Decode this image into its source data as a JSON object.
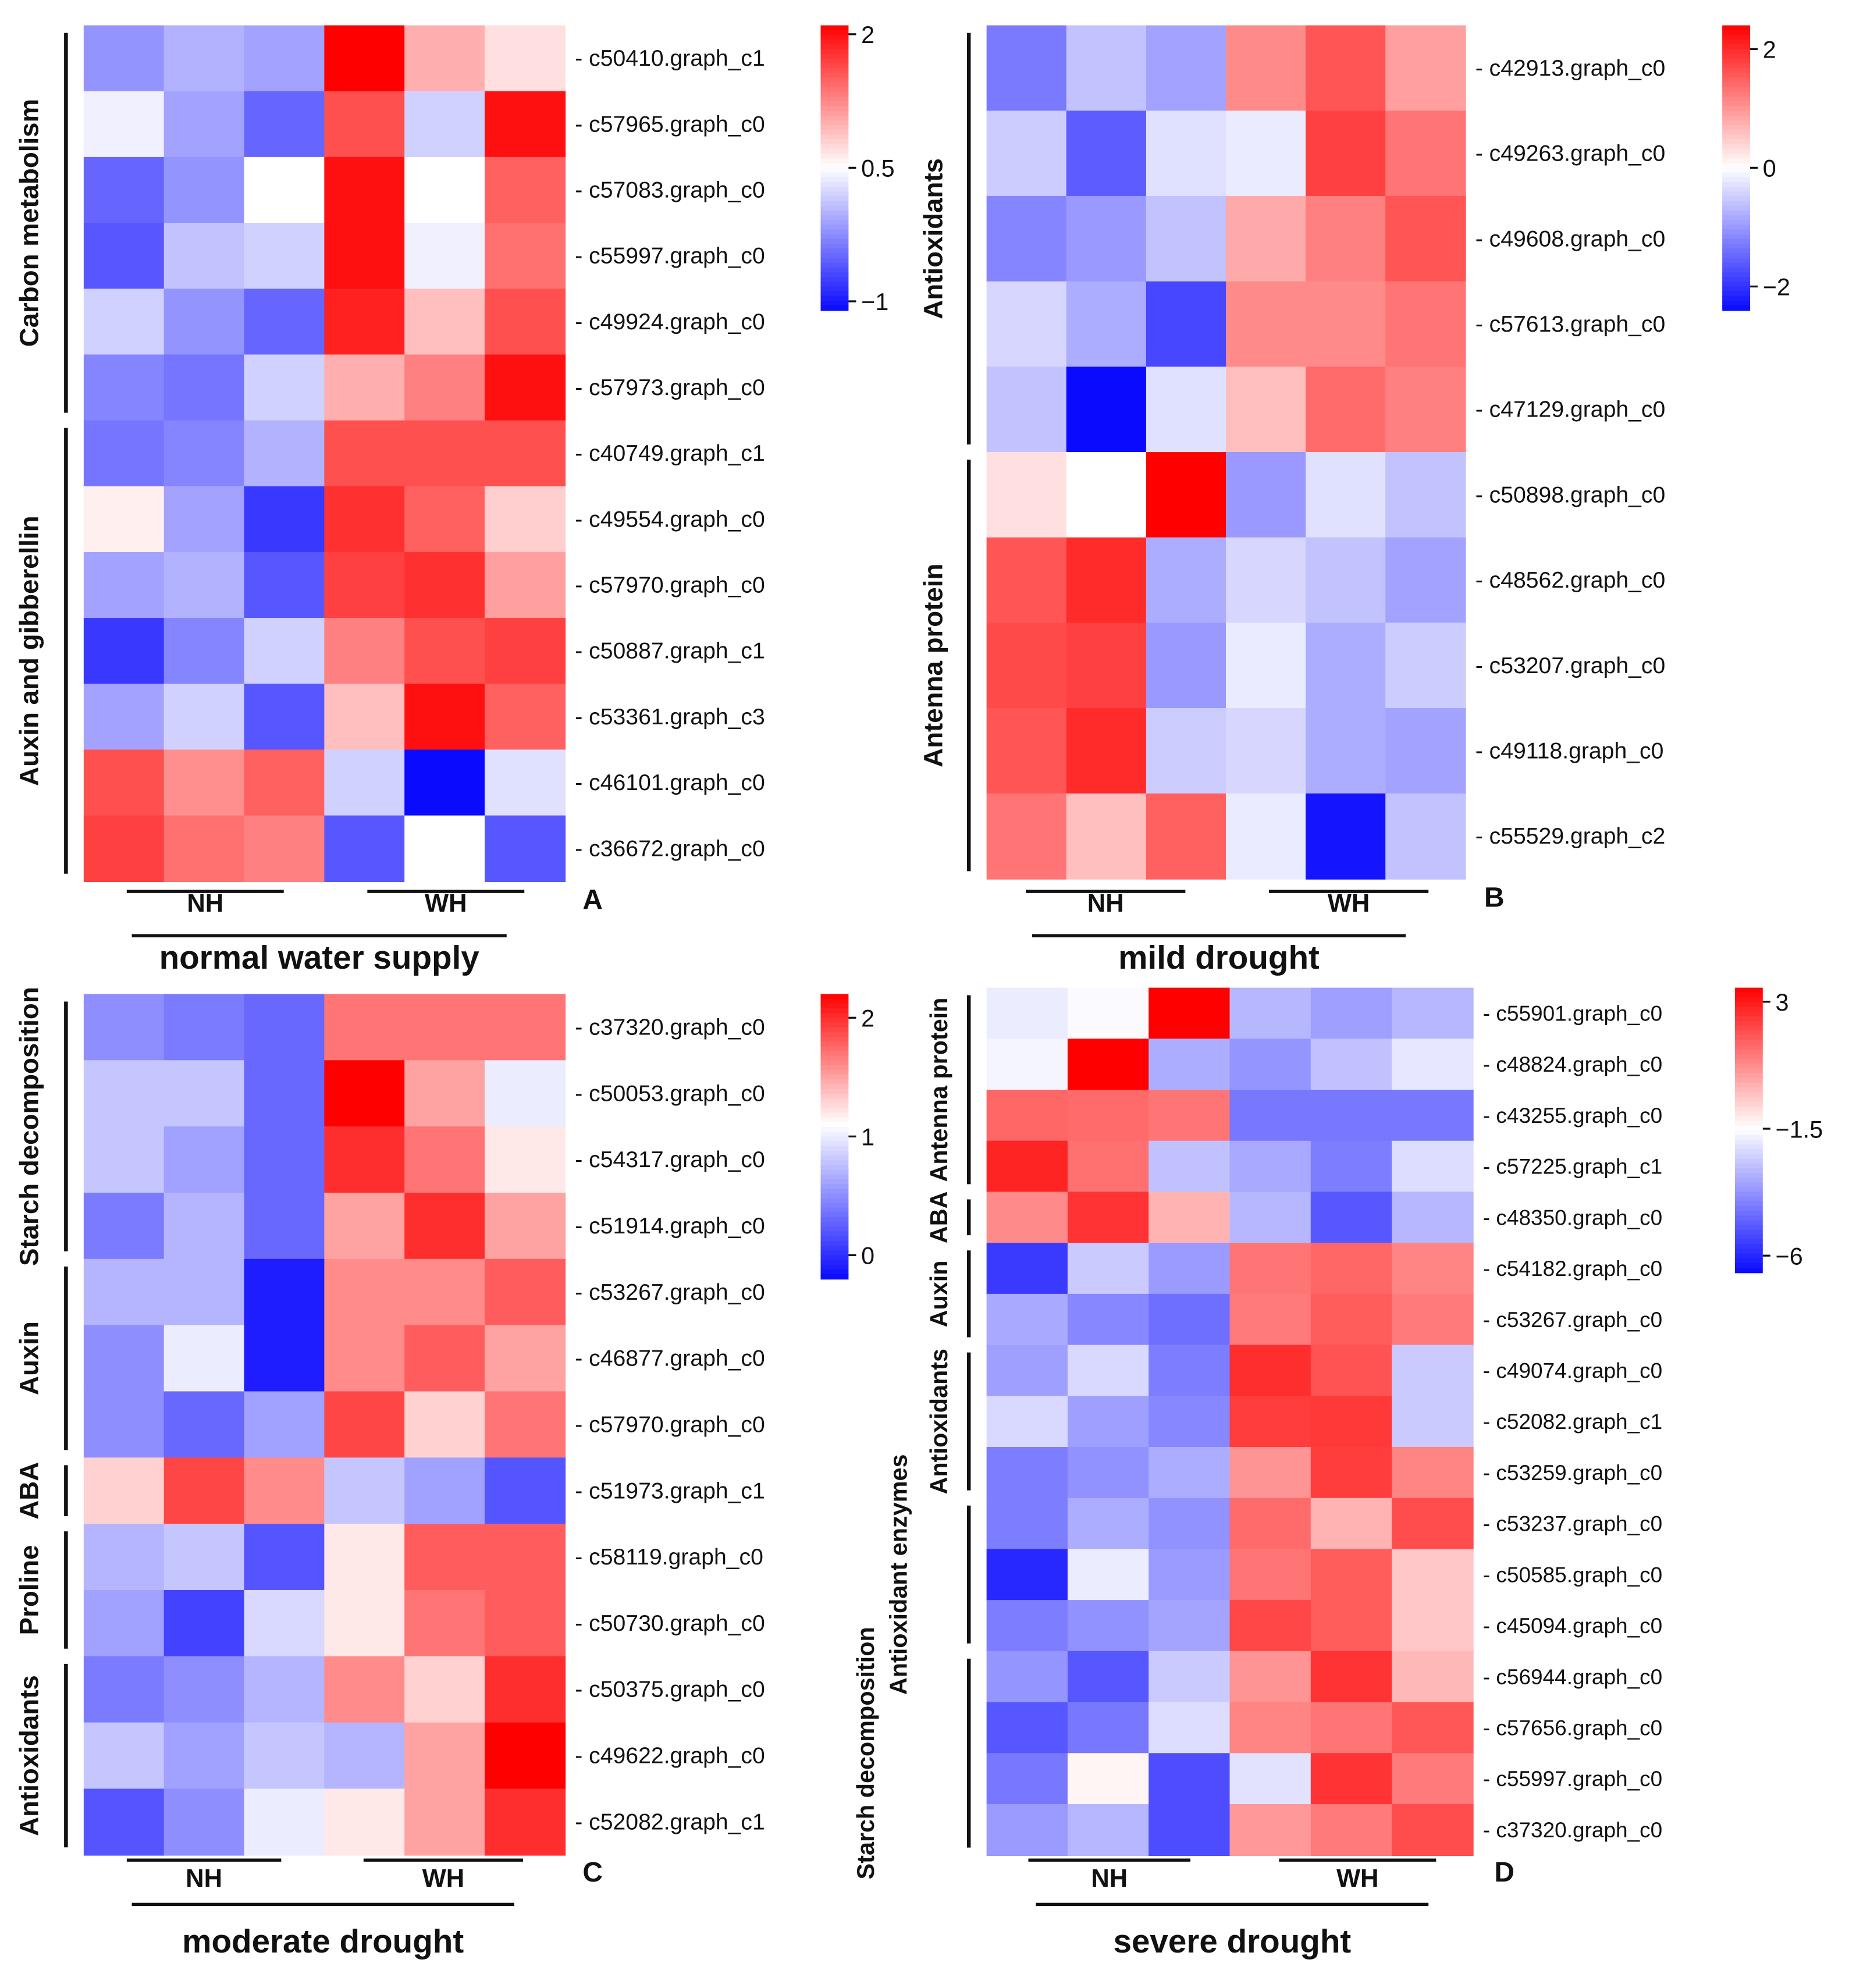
{
  "colors": {
    "low": "#0a0aff",
    "mid": "#ffffff",
    "high": "#ff0000",
    "text": "#111111"
  },
  "chart_data": [
    {
      "panel": "A",
      "type": "heatmap",
      "condition": "normal water supply",
      "groups": [
        "NH",
        "WH"
      ],
      "colorbar": {
        "min": -1.1,
        "max": 2.1,
        "mid": 0.5,
        "ticks": [
          2,
          0.5,
          -1
        ],
        "tick_labels": [
          "2",
          "0.5",
          "−1"
        ]
      },
      "rows": [
        "c50410.graph_c1",
        "c57965.graph_c0",
        "c57083.graph_c0",
        "c55997.graph_c0",
        "c49924.graph_c0",
        "c57973.graph_c0",
        "c40749.graph_c1",
        "c49554.graph_c0",
        "c57970.graph_c0",
        "c50887.graph_c1",
        "c53361.graph_c3",
        "c46101.graph_c0",
        "c36672.graph_c0"
      ],
      "categories": [
        {
          "label": "Carbon metabolism",
          "start": 0,
          "end": 5
        },
        {
          "label": "Auxin and gibberellin",
          "start": 6,
          "end": 12
        }
      ],
      "values": [
        [
          -0.2,
          0.0,
          -0.1,
          2.1,
          1.0,
          0.7
        ],
        [
          0.4,
          -0.1,
          -0.5,
          1.6,
          0.2,
          2.0
        ],
        [
          -0.5,
          -0.2,
          0.5,
          2.0,
          0.5,
          1.5
        ],
        [
          -0.6,
          0.1,
          0.2,
          2.0,
          0.4,
          1.4
        ],
        [
          0.2,
          -0.2,
          -0.5,
          1.9,
          0.9,
          1.6
        ],
        [
          -0.3,
          -0.4,
          0.2,
          1.0,
          1.3,
          2.0
        ],
        [
          -0.4,
          -0.3,
          0.0,
          1.6,
          1.6,
          1.6
        ],
        [
          0.6,
          -0.1,
          -0.8,
          1.8,
          1.5,
          0.8
        ],
        [
          -0.1,
          0.0,
          -0.6,
          1.7,
          1.8,
          1.1
        ],
        [
          -0.8,
          -0.3,
          0.2,
          1.3,
          1.6,
          1.7
        ],
        [
          -0.1,
          0.2,
          -0.6,
          0.9,
          2.0,
          1.5
        ],
        [
          1.6,
          1.2,
          1.5,
          0.2,
          -1.1,
          0.3
        ],
        [
          1.7,
          1.4,
          1.3,
          -0.6,
          0.5,
          -0.6
        ]
      ]
    },
    {
      "panel": "B",
      "type": "heatmap",
      "condition": "mild drought",
      "groups": [
        "NH",
        "WH"
      ],
      "colorbar": {
        "min": -2.4,
        "max": 2.4,
        "mid": 0.0,
        "ticks": [
          2,
          0,
          -2
        ],
        "tick_labels": [
          "2",
          "0",
          "−2"
        ]
      },
      "rows": [
        "c42913.graph_c0",
        "c49263.graph_c0",
        "c49608.graph_c0",
        "c57613.graph_c0",
        "c47129.graph_c0",
        "c50898.graph_c0",
        "c48562.graph_c0",
        "c53207.graph_c0",
        "c49118.graph_c0",
        "c55529.graph_c2"
      ],
      "categories": [
        {
          "label": "Antioxidants",
          "start": 0,
          "end": 4
        },
        {
          "label": "Antenna protein",
          "start": 5,
          "end": 9
        }
      ],
      "values": [
        [
          -1.3,
          -0.6,
          -0.9,
          1.1,
          1.6,
          0.9
        ],
        [
          -0.5,
          -1.6,
          -0.3,
          -0.2,
          1.8,
          1.3
        ],
        [
          -1.2,
          -1.0,
          -0.6,
          0.8,
          1.2,
          1.6
        ],
        [
          -0.4,
          -0.8,
          -1.8,
          1.1,
          1.1,
          1.3
        ],
        [
          -0.6,
          -2.4,
          -0.3,
          0.6,
          1.4,
          1.2
        ],
        [
          0.3,
          0.0,
          2.4,
          -1.0,
          -0.3,
          -0.6
        ],
        [
          1.6,
          2.0,
          -0.8,
          -0.4,
          -0.6,
          -0.9
        ],
        [
          1.7,
          1.8,
          -1.0,
          -0.2,
          -0.8,
          -0.5
        ],
        [
          1.6,
          2.0,
          -0.5,
          -0.4,
          -0.8,
          -0.9
        ],
        [
          1.3,
          0.6,
          1.5,
          -0.2,
          -2.3,
          -0.6
        ]
      ]
    },
    {
      "panel": "C",
      "type": "heatmap",
      "condition": "moderate drought",
      "groups": [
        "NH",
        "WH"
      ],
      "colorbar": {
        "min": -0.2,
        "max": 2.2,
        "mid": 1.1,
        "ticks": [
          2,
          1,
          0
        ],
        "tick_labels": [
          "2",
          "1",
          "0"
        ]
      },
      "rows": [
        "c37320.graph_c0",
        "c50053.graph_c0",
        "c54317.graph_c0",
        "c51914.graph_c0",
        "c53267.graph_c0",
        "c46877.graph_c0",
        "c57970.graph_c0",
        "c51973.graph_c1",
        "c58119.graph_c0",
        "c50730.graph_c0",
        "c50375.graph_c0",
        "c49622.graph_c0",
        "c52082.graph_c1"
      ],
      "categories": [
        {
          "label": "Starch decomposition",
          "start": 0,
          "end": 3
        },
        {
          "label": "Auxin",
          "start": 4,
          "end": 6
        },
        {
          "label": "ABA",
          "start": 7,
          "end": 7
        },
        {
          "label": "Proline",
          "start": 8,
          "end": 9
        },
        {
          "label": "Antioxidants",
          "start": 10,
          "end": 12
        }
      ],
      "values": [
        [
          0.5,
          0.4,
          0.3,
          1.7,
          1.7,
          1.7
        ],
        [
          0.8,
          0.8,
          0.3,
          2.2,
          1.5,
          1.0
        ],
        [
          0.8,
          0.6,
          0.3,
          2.0,
          1.7,
          1.2
        ],
        [
          0.4,
          0.7,
          0.3,
          1.5,
          2.0,
          1.5
        ],
        [
          0.7,
          0.7,
          -0.1,
          1.6,
          1.6,
          1.8
        ],
        [
          0.5,
          1.0,
          -0.1,
          1.6,
          1.8,
          1.5
        ],
        [
          0.5,
          0.3,
          0.6,
          1.9,
          1.3,
          1.7
        ],
        [
          1.3,
          1.9,
          1.6,
          0.8,
          0.6,
          0.2
        ],
        [
          0.7,
          0.8,
          0.2,
          1.2,
          1.8,
          1.8
        ],
        [
          0.6,
          0.1,
          0.9,
          1.2,
          1.7,
          1.8
        ],
        [
          0.4,
          0.5,
          0.7,
          1.6,
          1.3,
          2.0
        ],
        [
          0.8,
          0.6,
          0.8,
          0.7,
          1.5,
          2.2
        ],
        [
          0.2,
          0.5,
          1.0,
          1.2,
          1.5,
          2.0
        ]
      ]
    },
    {
      "panel": "D",
      "type": "heatmap",
      "condition": "severe drought",
      "groups": [
        "NH",
        "WH"
      ],
      "colorbar": {
        "min": -6.6,
        "max": 3.5,
        "mid": -1.5,
        "ticks": [
          3,
          -1.5,
          -6
        ],
        "tick_labels": [
          "3",
          "−1.5",
          "−6"
        ]
      },
      "rows": [
        "c55901.graph_c0",
        "c48824.graph_c0",
        "c43255.graph_c0",
        "c57225.graph_c1",
        "c48350.graph_c0",
        "c54182.graph_c0",
        "c53267.graph_c0",
        "c49074.graph_c0",
        "c52082.graph_c1",
        "c53259.graph_c0",
        "c53237.graph_c0",
        "c50585.graph_c0",
        "c45094.graph_c0",
        "c56944.graph_c0",
        "c57656.graph_c0",
        "c55997.graph_c0",
        "c37320.graph_c0"
      ],
      "categories": [
        {
          "label": "Antenna protein",
          "start": 0,
          "end": 3
        },
        {
          "label": "ABA",
          "start": 4,
          "end": 4
        },
        {
          "label": "Auxin",
          "start": 5,
          "end": 6
        },
        {
          "label": "Antioxidants",
          "start": 7,
          "end": 9
        },
        {
          "label": "Antioxidant enzymes",
          "start": 10,
          "end": 12
        },
        {
          "label": "Starch decomposition",
          "start": 13,
          "end": 16
        }
      ],
      "values": [
        [
          -1.9,
          -1.6,
          3.5,
          -3.0,
          -3.5,
          -3.0
        ],
        [
          -1.7,
          3.5,
          -3.2,
          -3.7,
          -2.8,
          -2.0
        ],
        [
          1.5,
          1.4,
          1.2,
          -4.3,
          -4.3,
          -4.3
        ],
        [
          2.8,
          1.3,
          -2.8,
          -3.3,
          -4.2,
          -2.2
        ],
        [
          0.8,
          2.5,
          0.0,
          -3.0,
          -5.0,
          -3.0
        ],
        [
          -5.6,
          -2.6,
          -3.6,
          1.2,
          1.5,
          0.9
        ],
        [
          -3.3,
          -4.0,
          -4.5,
          1.1,
          1.7,
          1.1
        ],
        [
          -3.5,
          -2.3,
          -4.2,
          2.6,
          1.9,
          -2.6
        ],
        [
          -2.3,
          -3.5,
          -4.0,
          2.3,
          2.4,
          -2.6
        ],
        [
          -4.2,
          -3.8,
          -3.2,
          0.6,
          2.3,
          0.9
        ],
        [
          -4.2,
          -3.2,
          -3.8,
          1.4,
          0.0,
          2.0
        ],
        [
          -6.0,
          -1.9,
          -3.6,
          1.2,
          1.7,
          -0.4
        ],
        [
          -4.2,
          -3.8,
          -3.4,
          2.1,
          1.7,
          -0.4
        ],
        [
          -3.7,
          -5.0,
          -2.6,
          0.6,
          2.5,
          -0.1
        ],
        [
          -5.0,
          -4.3,
          -2.2,
          0.9,
          1.2,
          1.8
        ],
        [
          -4.3,
          -1.3,
          -5.2,
          -2.1,
          2.5,
          1.1
        ],
        [
          -3.6,
          -3.0,
          -5.2,
          0.5,
          1.1,
          2.0
        ]
      ]
    }
  ]
}
